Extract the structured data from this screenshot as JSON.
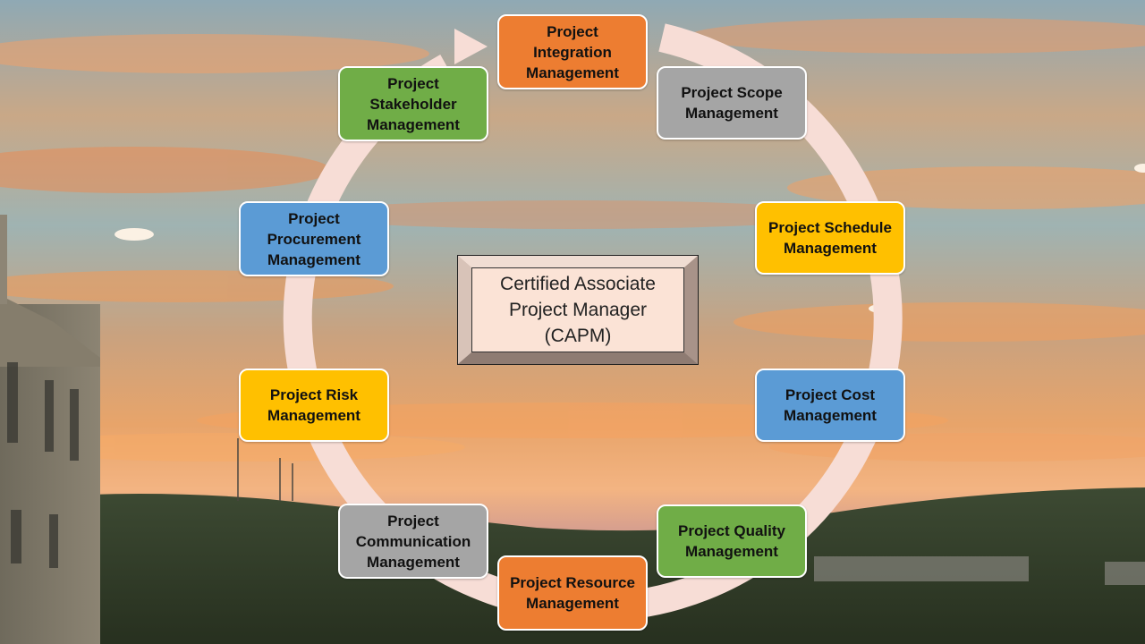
{
  "center": {
    "label": "Certified Associate\nProject Manager\n(CAPM)",
    "fill": "#fbe3d6"
  },
  "cycle_arrow_color": "#f7ddd6",
  "knowledge_areas": [
    {
      "id": "integration",
      "label": "Project\nIntegration\nManagement",
      "color": "#ed7d31"
    },
    {
      "id": "scope",
      "label": "Project Scope\nManagement",
      "color": "#a5a5a5"
    },
    {
      "id": "schedule",
      "label": "Project Schedule\nManagement",
      "color": "#ffc000"
    },
    {
      "id": "cost",
      "label": "Project Cost\nManagement",
      "color": "#5b9bd5"
    },
    {
      "id": "quality",
      "label": "Project Quality\nManagement",
      "color": "#70ad47"
    },
    {
      "id": "resource",
      "label": "Project Resource\nManagement",
      "color": "#ed7d31"
    },
    {
      "id": "communication",
      "label": "Project\nCommunication\nManagement",
      "color": "#a5a5a5"
    },
    {
      "id": "risk",
      "label": "Project Risk\nManagement",
      "color": "#ffc000"
    },
    {
      "id": "procurement",
      "label": "Project\nProcurement\nManagement",
      "color": "#5b9bd5"
    },
    {
      "id": "stakeholder",
      "label": "Project\nStakeholder\nManagement",
      "color": "#70ad47"
    }
  ]
}
